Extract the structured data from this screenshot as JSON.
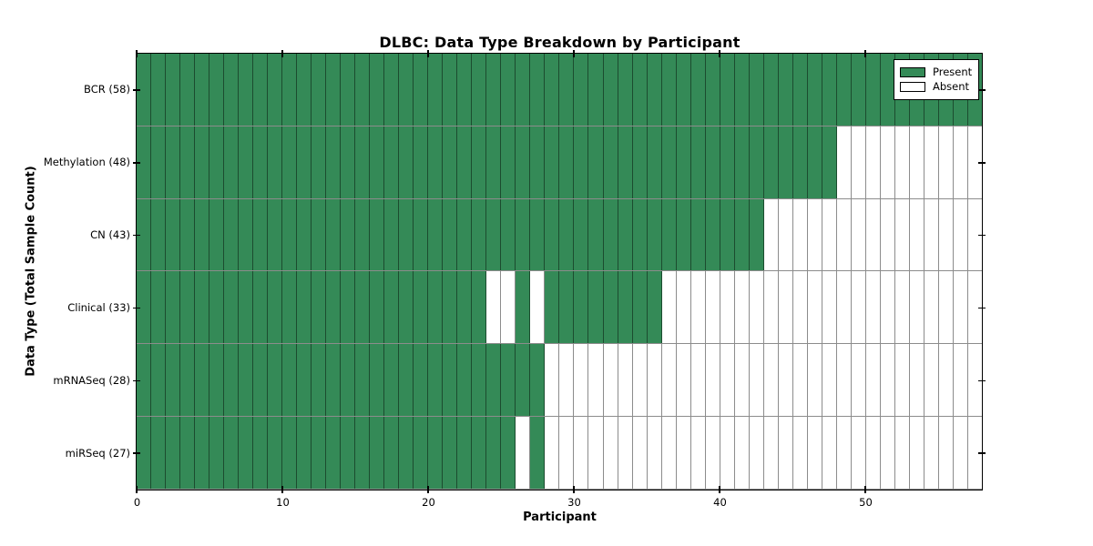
{
  "chart_data": {
    "type": "heatmap",
    "title": "DLBC: Data Type Breakdown by Participant",
    "xlabel": "Participant",
    "ylabel": "Data Type (Total Sample Count)",
    "x_ticks": [
      0,
      10,
      20,
      30,
      40,
      50
    ],
    "x_range": [
      0,
      58
    ],
    "n_participants": 58,
    "grid": "cell-borders",
    "colors": {
      "present": "#348a57",
      "absent": "#ffffff",
      "grid_line": "rgba(0,0,0,0.45)",
      "spine": "#000000"
    },
    "legend": {
      "position": "upper-right",
      "entries": [
        {
          "label": "Present",
          "color": "#348a57"
        },
        {
          "label": "Absent",
          "color": "#ffffff"
        }
      ]
    },
    "rows": [
      {
        "label": "BCR (58)",
        "data_type": "BCR",
        "total": 58,
        "present_ranges": [
          [
            0,
            57
          ]
        ]
      },
      {
        "label": "Methylation (48)",
        "data_type": "Methylation",
        "total": 48,
        "present_ranges": [
          [
            0,
            47
          ]
        ]
      },
      {
        "label": "CN (43)",
        "data_type": "CN",
        "total": 43,
        "present_ranges": [
          [
            0,
            42
          ]
        ]
      },
      {
        "label": "Clinical (33)",
        "data_type": "Clinical",
        "total": 33,
        "present_ranges": [
          [
            0,
            23
          ],
          [
            26,
            26
          ],
          [
            28,
            35
          ]
        ]
      },
      {
        "label": "mRNASeq (28)",
        "data_type": "mRNASeq",
        "total": 28,
        "present_ranges": [
          [
            0,
            27
          ]
        ]
      },
      {
        "label": "miRSeq (27)",
        "data_type": "miRSeq",
        "total": 27,
        "present_ranges": [
          [
            0,
            25
          ],
          [
            27,
            27
          ]
        ]
      }
    ]
  }
}
